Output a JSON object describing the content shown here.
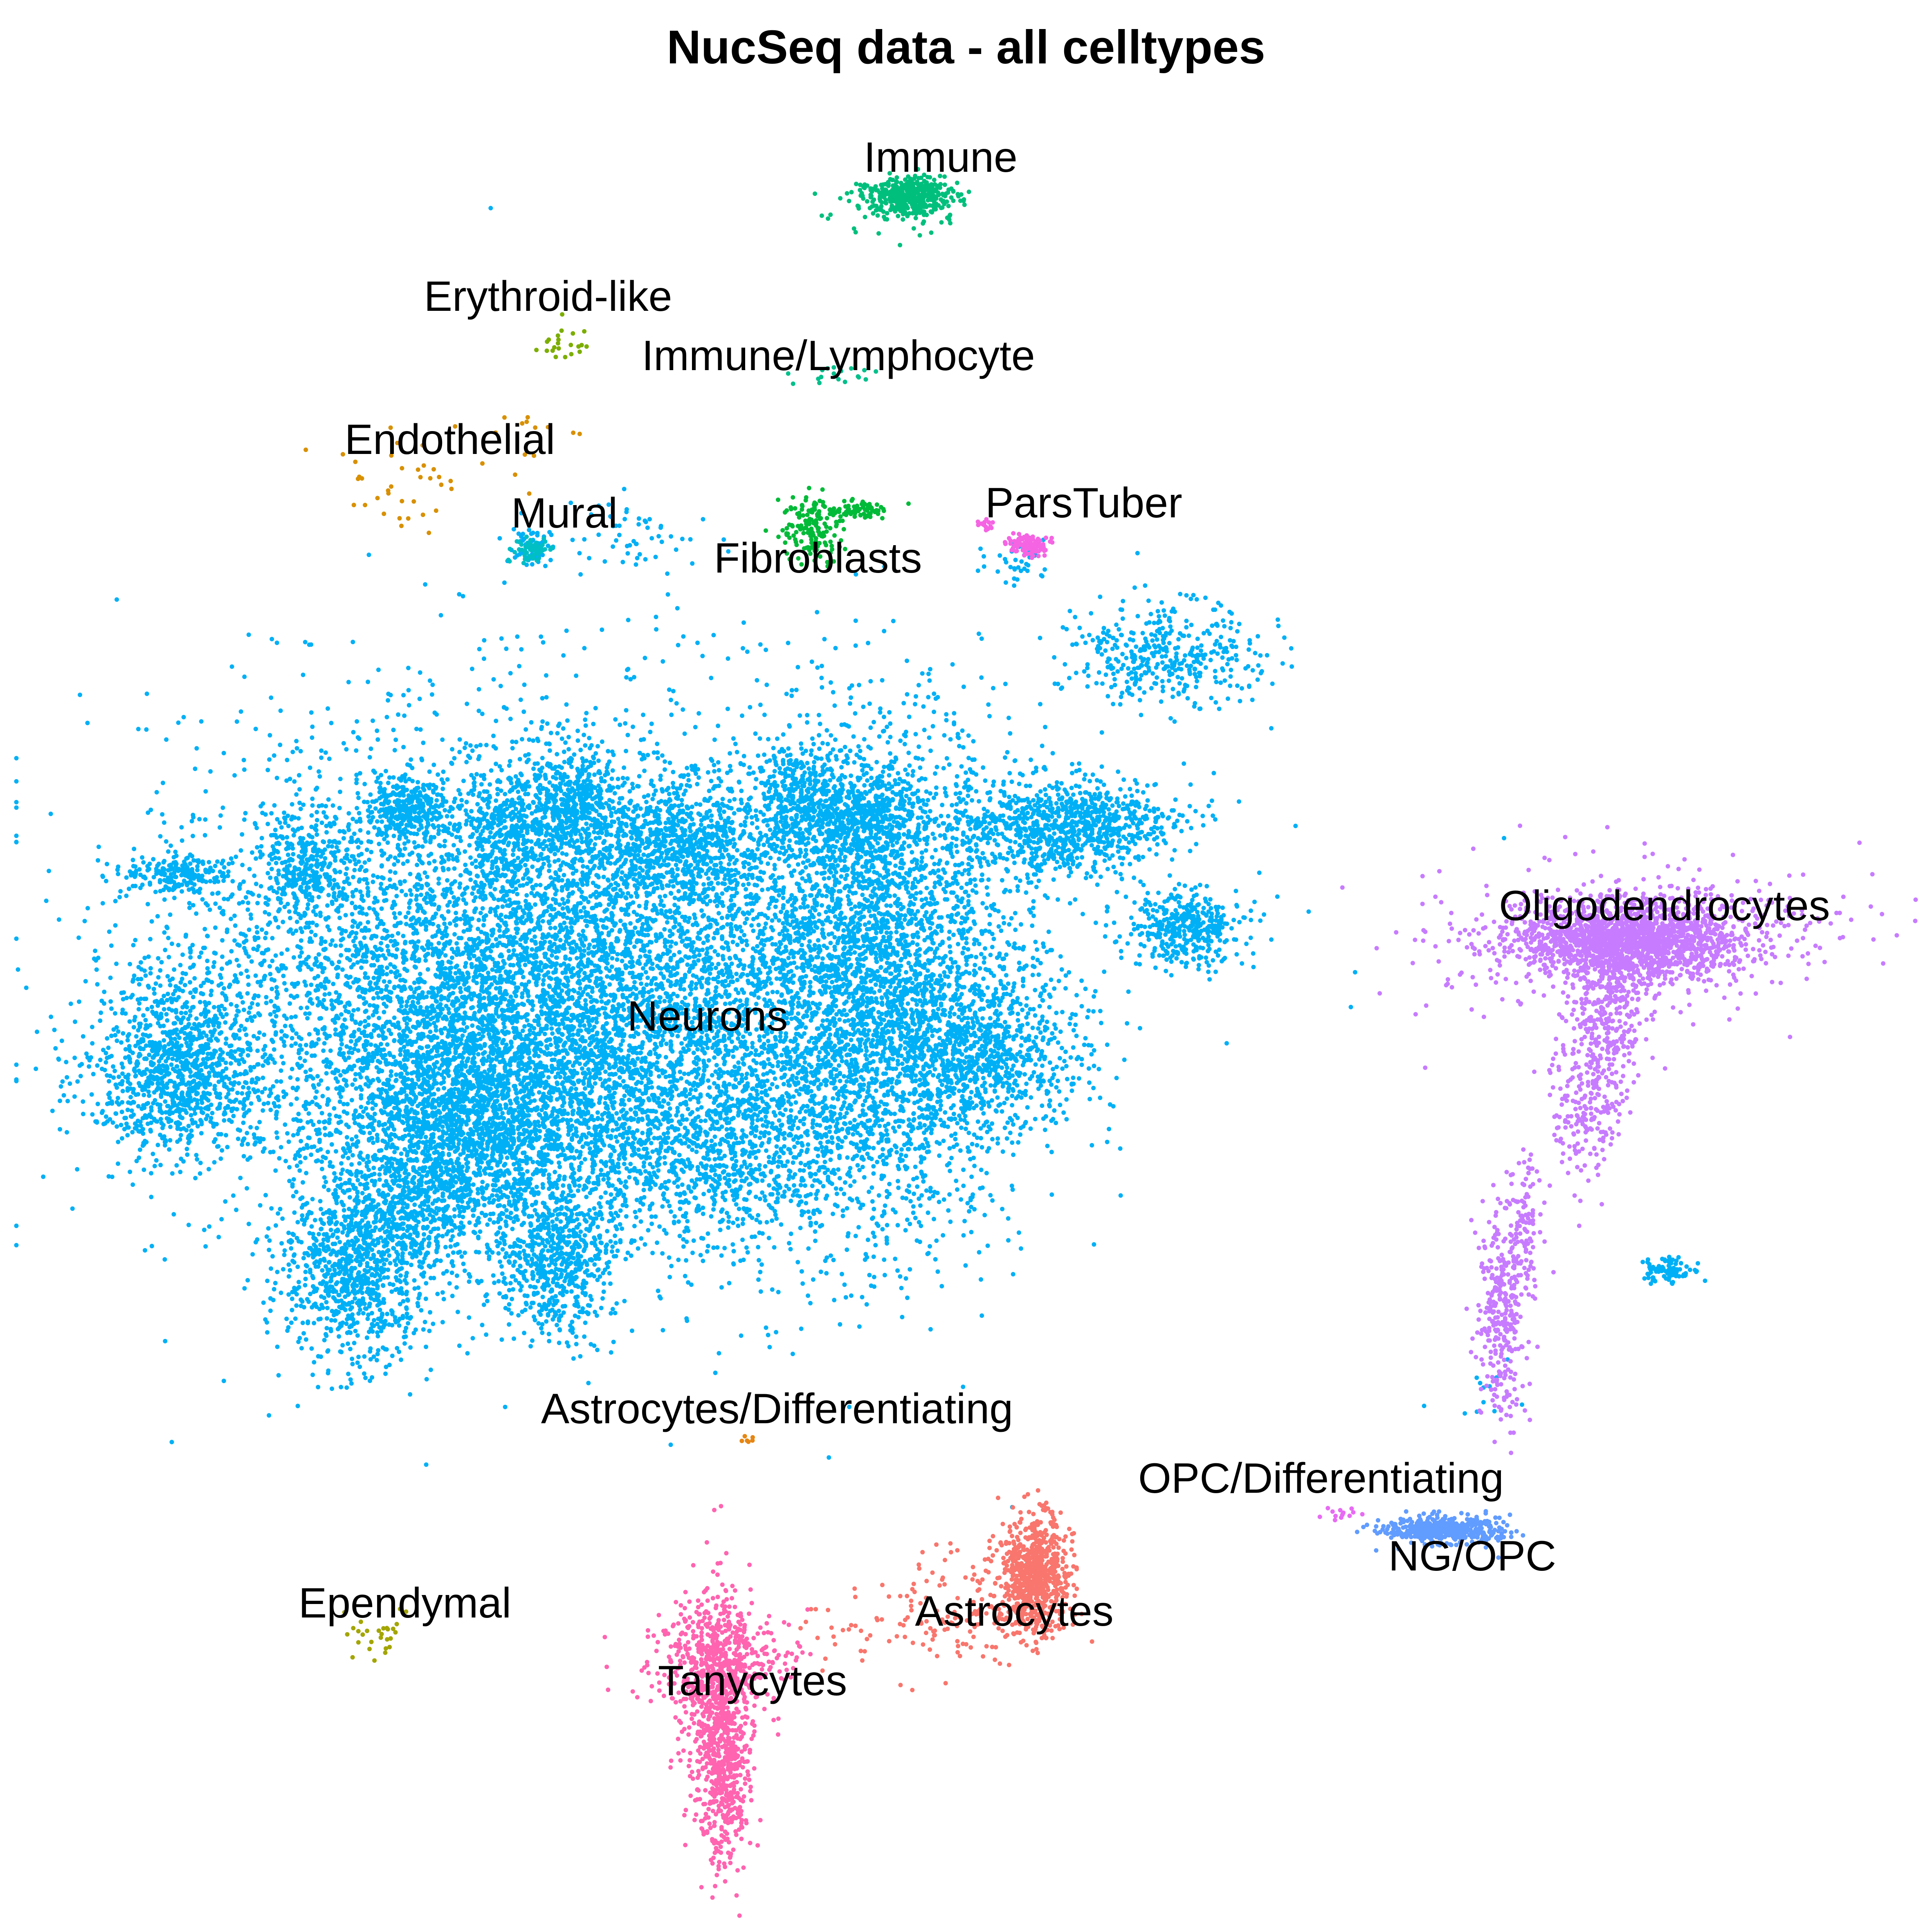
{
  "chart_data": {
    "type": "scatter",
    "title": "NucSeq data - all celltypes",
    "xlabel": "",
    "ylabel": "",
    "grid": false,
    "axes_visible": false,
    "legend": "none",
    "series": [
      {
        "name": "Neurons",
        "color": "#00B0F6",
        "clusters": [
          {
            "x": 1300,
            "y": 2450,
            "sx": 380,
            "sy": 260,
            "n": 5200
          },
          {
            "x": 2150,
            "y": 2400,
            "sx": 170,
            "sy": 300,
            "n": 3200
          },
          {
            "x": 1450,
            "y": 2350,
            "sx": 520,
            "sy": 330,
            "n": 3500
          },
          {
            "x": 1150,
            "y": 2750,
            "sx": 180,
            "sy": 130,
            "n": 1800
          },
          {
            "x": 2600,
            "y": 2020,
            "sx": 130,
            "sy": 60,
            "n": 900
          },
          {
            "x": 1000,
            "y": 1980,
            "sx": 50,
            "sy": 40,
            "n": 300
          },
          {
            "x": 1410,
            "y": 1960,
            "sx": 50,
            "sy": 60,
            "n": 400
          },
          {
            "x": 1650,
            "y": 2050,
            "sx": 100,
            "sy": 70,
            "n": 600
          },
          {
            "x": 1250,
            "y": 2020,
            "sx": 60,
            "sy": 70,
            "n": 350
          },
          {
            "x": 740,
            "y": 2110,
            "sx": 60,
            "sy": 60,
            "n": 300
          },
          {
            "x": 440,
            "y": 2140,
            "sx": 70,
            "sy": 25,
            "n": 200
          },
          {
            "x": 450,
            "y": 2560,
            "sx": 100,
            "sy": 110,
            "n": 700
          },
          {
            "x": 400,
            "y": 2680,
            "sx": 100,
            "sy": 70,
            "n": 350
          },
          {
            "x": 870,
            "y": 3110,
            "sx": 90,
            "sy": 110,
            "n": 900
          },
          {
            "x": 1360,
            "y": 3080,
            "sx": 70,
            "sy": 100,
            "n": 600
          },
          {
            "x": 1020,
            "y": 2970,
            "sx": 80,
            "sy": 60,
            "n": 300
          },
          {
            "x": 1750,
            "y": 2800,
            "sx": 170,
            "sy": 130,
            "n": 800
          },
          {
            "x": 2900,
            "y": 2270,
            "sx": 70,
            "sy": 45,
            "n": 400
          },
          {
            "x": 2850,
            "y": 1600,
            "sx": 120,
            "sy": 60,
            "n": 400
          },
          {
            "x": 2400,
            "y": 2580,
            "sx": 130,
            "sy": 90,
            "n": 700
          },
          {
            "x": 2100,
            "y": 2000,
            "sx": 80,
            "sy": 60,
            "n": 500
          },
          {
            "x": 1950,
            "y": 1950,
            "sx": 60,
            "sy": 60,
            "n": 300
          },
          {
            "x": 1300,
            "y": 1340,
            "sx": 25,
            "sy": 25,
            "n": 60
          },
          {
            "x": 1520,
            "y": 1310,
            "sx": 90,
            "sy": 40,
            "n": 50
          },
          {
            "x": 2500,
            "y": 1380,
            "sx": 40,
            "sy": 30,
            "n": 40
          },
          {
            "x": 4070,
            "y": 3110,
            "sx": 30,
            "sy": 18,
            "n": 90
          },
          {
            "x": 3600,
            "y": 3400,
            "sx": 60,
            "sy": 60,
            "n": 12
          },
          {
            "x": 1200,
            "y": 500,
            "sx": 8,
            "sy": 8,
            "n": 1
          }
        ]
      },
      {
        "name": "Oligodendrocytes",
        "color": "#C77CFF",
        "clusters": [
          {
            "x": 3980,
            "y": 2300,
            "sx": 130,
            "sy": 45,
            "n": 1600
          },
          {
            "x": 3980,
            "y": 2290,
            "sx": 250,
            "sy": 90,
            "n": 500
          },
          {
            "x": 3930,
            "y": 2500,
            "sx": 45,
            "sy": 100,
            "n": 320
          },
          {
            "x": 3880,
            "y": 2700,
            "sx": 45,
            "sy": 90,
            "n": 180
          },
          {
            "x": 3720,
            "y": 3000,
            "sx": 25,
            "sy": 90,
            "n": 120
          },
          {
            "x": 3670,
            "y": 3220,
            "sx": 30,
            "sy": 120,
            "n": 300
          }
        ]
      },
      {
        "name": "Astrocytes",
        "color": "#F8766D",
        "clusters": [
          {
            "x": 2530,
            "y": 3850,
            "sx": 40,
            "sy": 70,
            "n": 700
          },
          {
            "x": 2380,
            "y": 3920,
            "sx": 120,
            "sy": 70,
            "n": 150
          },
          {
            "x": 2150,
            "y": 3980,
            "sx": 140,
            "sy": 40,
            "n": 50
          }
        ]
      },
      {
        "name": "Tanycytes",
        "color": "#FF64B0",
        "clusters": [
          {
            "x": 1760,
            "y": 4190,
            "sx": 40,
            "sy": 150,
            "n": 700
          },
          {
            "x": 1760,
            "y": 4060,
            "sx": 90,
            "sy": 60,
            "n": 400
          },
          {
            "x": 1770,
            "y": 4380,
            "sx": 25,
            "sy": 110,
            "n": 200
          }
        ]
      },
      {
        "name": "NG/OPC",
        "color": "#619CFF",
        "clusters": [
          {
            "x": 3530,
            "y": 3740,
            "sx": 70,
            "sy": 16,
            "n": 500
          }
        ]
      },
      {
        "name": "Immune",
        "color": "#00BF7D",
        "clusters": [
          {
            "x": 2220,
            "y": 480,
            "sx": 50,
            "sy": 22,
            "n": 350
          },
          {
            "x": 2210,
            "y": 500,
            "sx": 80,
            "sy": 40,
            "n": 80
          }
        ]
      },
      {
        "name": "Fibroblasts",
        "color": "#00BA38",
        "clusters": [
          {
            "x": 1990,
            "y": 1290,
            "sx": 40,
            "sy": 40,
            "n": 160
          },
          {
            "x": 2100,
            "y": 1245,
            "sx": 40,
            "sy": 10,
            "n": 70
          }
        ]
      },
      {
        "name": "Immune/Lymphocyte",
        "color": "#00C08B",
        "clusters": [
          {
            "x": 2050,
            "y": 920,
            "sx": 60,
            "sy": 20,
            "n": 18
          }
        ]
      },
      {
        "name": "ParsTuber",
        "color": "#F564E3",
        "clusters": [
          {
            "x": 2510,
            "y": 1330,
            "sx": 22,
            "sy": 14,
            "n": 110
          },
          {
            "x": 2410,
            "y": 1280,
            "sx": 10,
            "sy": 8,
            "n": 15
          }
        ]
      },
      {
        "name": "Mural",
        "color": "#00BFC4",
        "clusters": [
          {
            "x": 1300,
            "y": 1345,
            "sx": 22,
            "sy": 15,
            "n": 60
          }
        ]
      },
      {
        "name": "Endothelial",
        "color": "#D89000",
        "clusters": [
          {
            "x": 980,
            "y": 1190,
            "sx": 70,
            "sy": 60,
            "n": 35
          },
          {
            "x": 1260,
            "y": 1080,
            "sx": 80,
            "sy": 60,
            "n": 15
          }
        ]
      },
      {
        "name": "Erythroid-like",
        "color": "#7CAE00",
        "clusters": [
          {
            "x": 1390,
            "y": 840,
            "sx": 30,
            "sy": 30,
            "n": 22
          }
        ]
      },
      {
        "name": "Ependymal",
        "color": "#A3A500",
        "clusters": [
          {
            "x": 910,
            "y": 4010,
            "sx": 60,
            "sy": 40,
            "n": 28
          }
        ]
      },
      {
        "name": "OPC/Differentiating",
        "color": "#E76BF3",
        "clusters": [
          {
            "x": 3280,
            "y": 3700,
            "sx": 30,
            "sy": 10,
            "n": 14
          }
        ]
      },
      {
        "name": "Astrocytes/Differentiating",
        "color": "#E68613",
        "clusters": [
          {
            "x": 1830,
            "y": 3520,
            "sx": 8,
            "sy": 6,
            "n": 6
          }
        ]
      }
    ],
    "annotations": [
      {
        "text": "Immune",
        "x": 2300,
        "y": 420
      },
      {
        "text": "Erythroid-like",
        "x": 1340,
        "y": 760
      },
      {
        "text": "Immune/Lymphocyte",
        "x": 2050,
        "y": 905
      },
      {
        "text": "Endothelial",
        "x": 1100,
        "y": 1110
      },
      {
        "text": "ParsTuber",
        "x": 2650,
        "y": 1265
      },
      {
        "text": "Mural",
        "x": 1380,
        "y": 1290
      },
      {
        "text": "Fibroblasts",
        "x": 2000,
        "y": 1400
      },
      {
        "text": "Oligodendrocytes",
        "x": 4070,
        "y": 2250
      },
      {
        "text": "Neurons",
        "x": 1730,
        "y": 2520
      },
      {
        "text": "Astrocytes/Differentiating",
        "x": 1900,
        "y": 3480
      },
      {
        "text": "OPC/Differentiating",
        "x": 3230,
        "y": 3650
      },
      {
        "text": "NG/OPC",
        "x": 3600,
        "y": 3840
      },
      {
        "text": "Ependymal",
        "x": 990,
        "y": 3955
      },
      {
        "text": "Astrocytes",
        "x": 2480,
        "y": 3975
      },
      {
        "text": "Tanycytes",
        "x": 1840,
        "y": 4145
      }
    ]
  }
}
